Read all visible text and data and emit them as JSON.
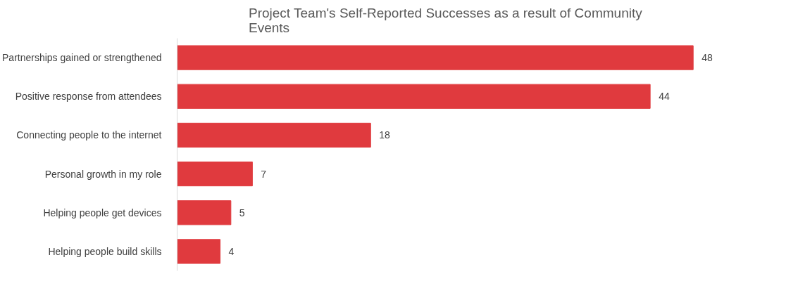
{
  "chart_data": {
    "type": "bar",
    "orientation": "horizontal",
    "title": "Project Team's Self-Reported Successes as a result of Community Events",
    "categories": [
      "Partnerships gained or strengthened",
      "Positive response from attendees",
      "Connecting people to the internet",
      "Personal growth in my role",
      "Helping people get devices",
      "Helping people build skills"
    ],
    "values": [
      48,
      44,
      18,
      7,
      5,
      4
    ],
    "color": "#e03a3e",
    "data_labels": true,
    "grid": false
  }
}
